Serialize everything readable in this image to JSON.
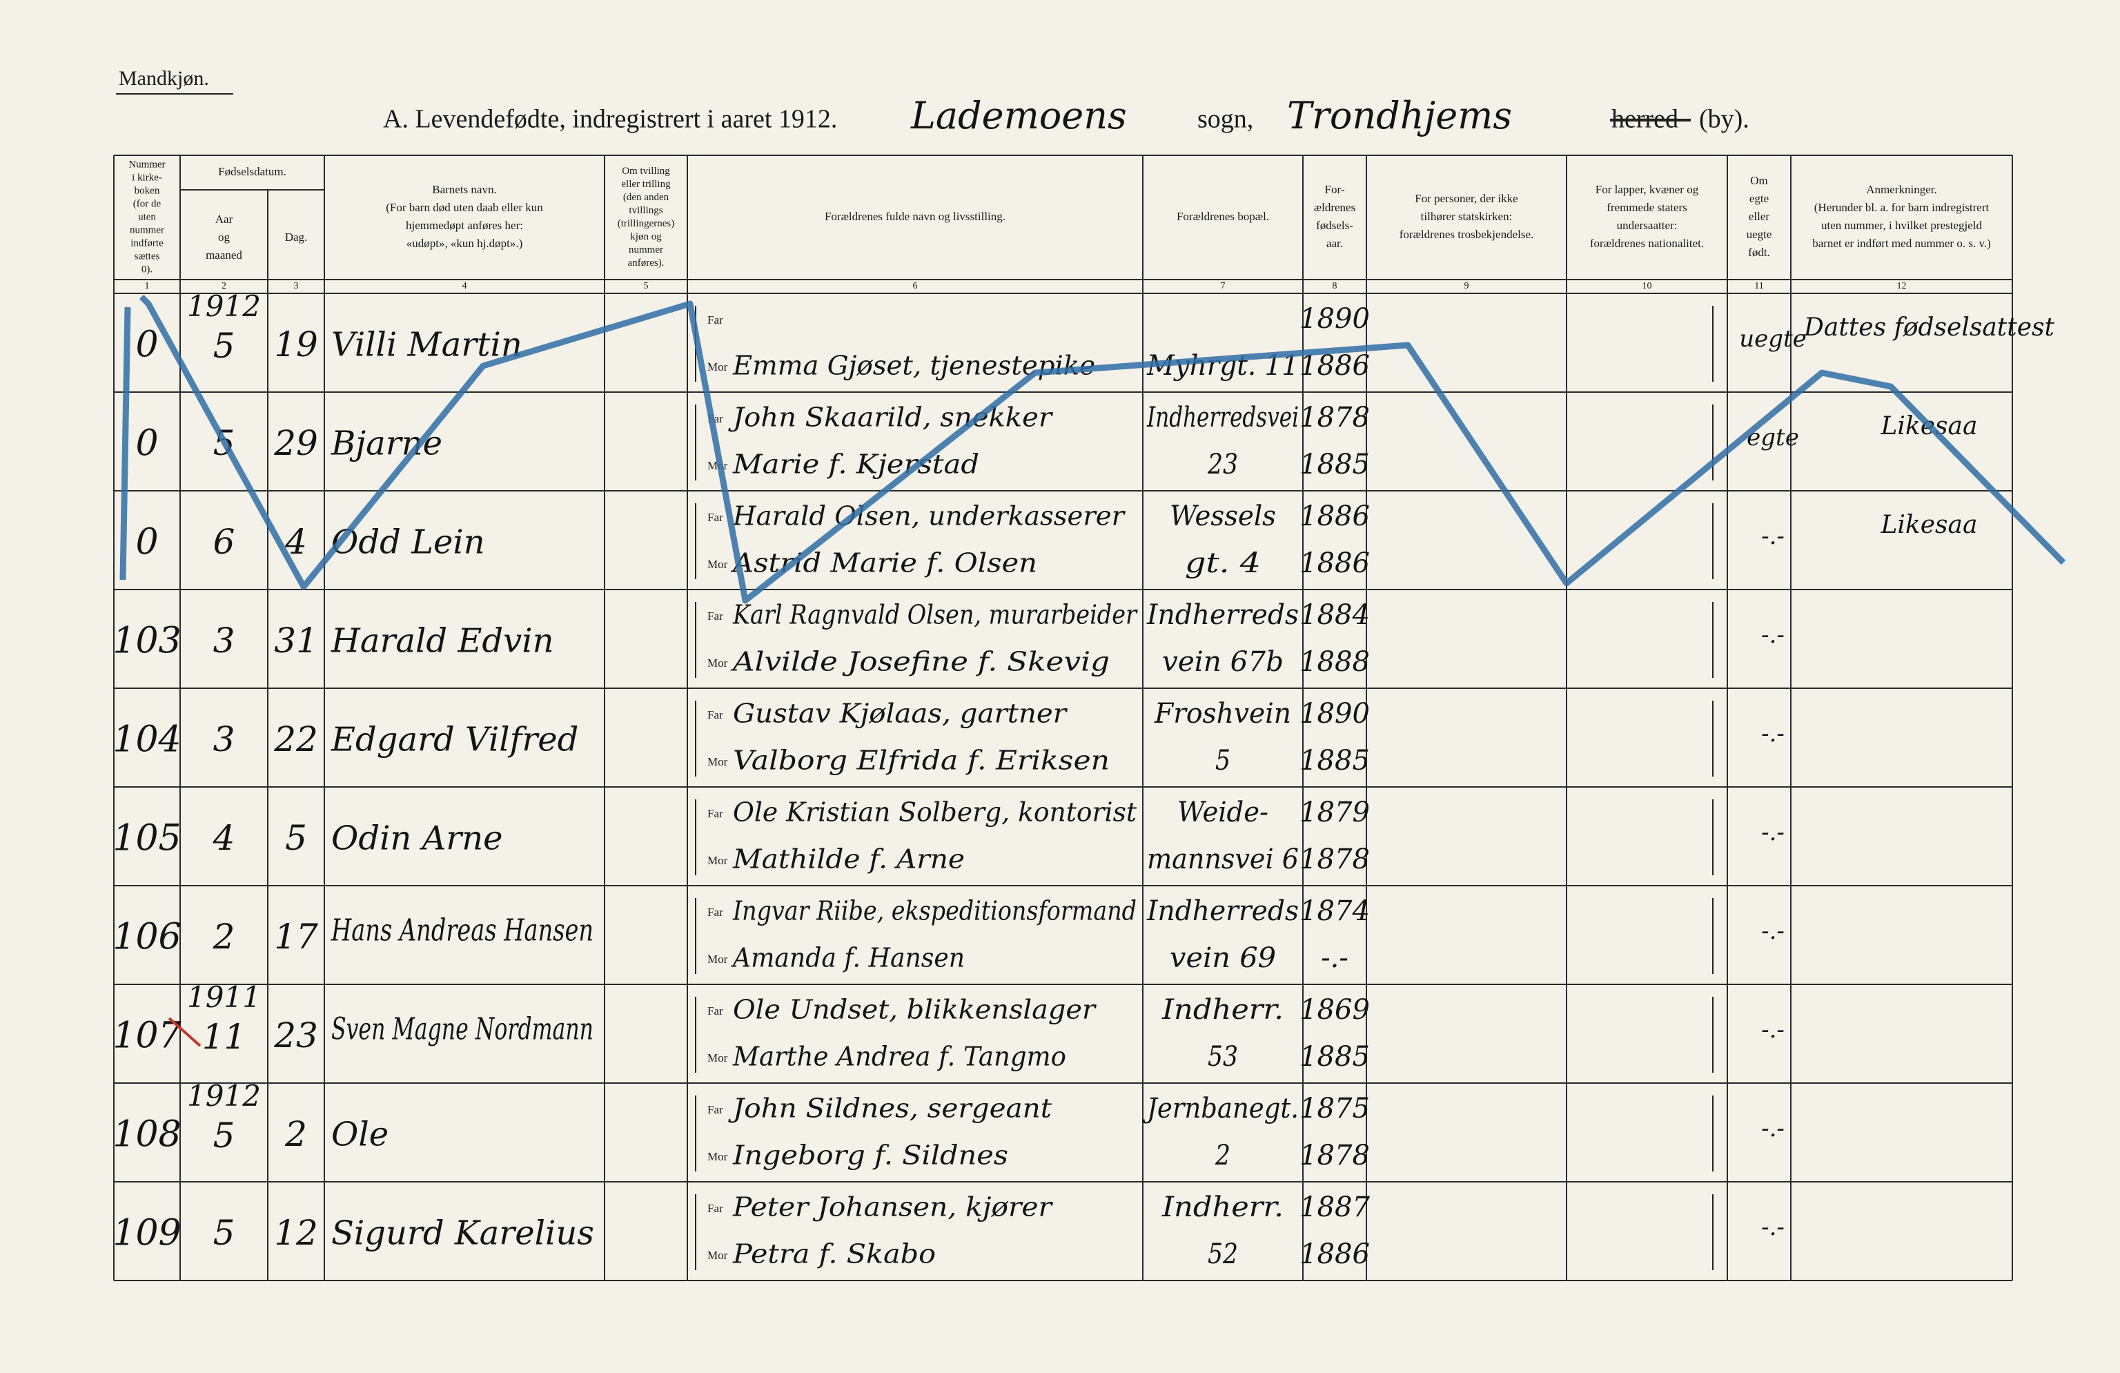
{
  "header": {
    "corner_label": "Mandkjøn.",
    "title": "A.  Levendefødte, indregistrert i aaret 1912.",
    "parish": "Lademoens",
    "sogn_label": "sogn,",
    "town": "Trondhjems",
    "herred": "herred",
    "by": "(by)."
  },
  "date_header": "Fødselsdatum.",
  "columns": [
    {
      "number": "1",
      "lines": [
        "Nummer",
        "i kirke-",
        "boken",
        "(for de",
        "uten",
        "nummer",
        "indførte",
        "sættes",
        "0)."
      ]
    },
    {
      "number": "2",
      "lines": [
        "Aar",
        "og",
        "maaned"
      ]
    },
    {
      "number": "3",
      "lines": [
        "Dag."
      ]
    },
    {
      "number": "4",
      "lines": [
        "Barnets navn.",
        "(For barn død uten daab eller kun",
        "hjemmedøpt anføres her:",
        "«udøpt», «kun hj.døpt».)"
      ]
    },
    {
      "number": "5",
      "lines": [
        "Om tvilling",
        "eller trilling",
        "(den anden",
        "tvillings",
        "(trillingernes)",
        "kjøn og",
        "nummer",
        "anføres)."
      ]
    },
    {
      "number": "6",
      "lines": [
        "Forældrenes fulde navn og livsstilling."
      ]
    },
    {
      "number": "7",
      "lines": [
        "Forældrenes bopæl."
      ]
    },
    {
      "number": "8",
      "lines": [
        "For-",
        "ældrenes",
        "fødsels-",
        "aar."
      ]
    },
    {
      "number": "9",
      "lines": [
        "For personer, der ikke",
        "tilhører statskirken:",
        "forældrenes trosbekjendelse."
      ]
    },
    {
      "number": "10",
      "lines": [
        "For lapper, kvæner og",
        "fremmede staters",
        "undersaatter:",
        "forældrenes nationalitet."
      ]
    },
    {
      "number": "11",
      "lines": [
        "Om",
        "egte",
        "eller",
        "uegte",
        "født."
      ]
    },
    {
      "number": "12",
      "lines": [
        "Anmerkninger.",
        "(Herunder bl. a. for barn indregistrert",
        "uten nummer, i hvilket prestegjeld",
        "barnet er indført med nummer o. s. v.)"
      ]
    }
  ],
  "labels": {
    "far": "Far",
    "mor": "Mor"
  },
  "rows": [
    {
      "nr": "0",
      "year": "1912",
      "month": "5",
      "day": "19",
      "name": "Villi Martin",
      "mor": "Emma Gjøset, tjenestepike",
      "bopael": [
        "Myhrgt. 11"
      ],
      "far_year": "1890",
      "mor_year": "1886",
      "legit": "uegte",
      "remark": "Dattes fødselsattest"
    },
    {
      "nr": "0",
      "month": "5",
      "day": "29",
      "name": "Bjarne",
      "far": "John Skaarild, snekker",
      "mor": "Marie f. Kjerstad",
      "bopael": [
        "Indherredsvei",
        "23"
      ],
      "far_year": "1878",
      "mor_year": "1885",
      "legit": "egte",
      "remark": "Likesaa"
    },
    {
      "nr": "0",
      "month": "6",
      "day": "4",
      "name": "Odd Lein",
      "far": "Harald Olsen, underkasserer",
      "mor": "Astrid Marie f. Olsen",
      "bopael": [
        "Wessels",
        "gt. 4"
      ],
      "far_year": "1886",
      "mor_year": "1886",
      "legit": "-.-",
      "remark": "Likesaa"
    },
    {
      "nr": "103",
      "month": "3",
      "day": "31",
      "name": "Harald Edvin",
      "far": "Karl Ragnvald Olsen, murarbeider",
      "mor": "Alvilde Josefine f. Skevig",
      "bopael": [
        "Indherreds",
        "vein 67b"
      ],
      "far_year": "1884",
      "mor_year": "1888",
      "legit": "-.-"
    },
    {
      "nr": "104",
      "month": "3",
      "day": "22",
      "name": "Edgard Vilfred",
      "far": "Gustav Kjølaas, gartner",
      "mor": "Valborg Elfrida f. Eriksen",
      "bopael": [
        "Froshvein",
        "5"
      ],
      "far_year": "1890",
      "mor_year": "1885",
      "legit": "-.-"
    },
    {
      "nr": "105",
      "month": "4",
      "day": "5",
      "name": "Odin Arne",
      "far": "Ole Kristian Solberg, kontorist",
      "mor": "Mathilde f. Arne",
      "bopael": [
        "Weide-",
        "mannsvei 6"
      ],
      "far_year": "1879",
      "mor_year": "1878",
      "legit": "-.-"
    },
    {
      "nr": "106",
      "month": "2",
      "day": "17",
      "name": "Hans Andreas Hansen",
      "far": "Ingvar Riibe, ekspeditionsformand",
      "mor": "Amanda f. Hansen",
      "bopael": [
        "Indherreds",
        "vein 69"
      ],
      "far_year": "1874",
      "mor_year": "-.-",
      "legit": "-.-"
    },
    {
      "nr": "107",
      "year": "1911",
      "month": "11",
      "day": "23",
      "name": "Sven Magne Nordmann",
      "far": "Ole Undset, blikkenslager",
      "mor": "Marthe Andrea f. Tangmo",
      "bopael": [
        "Indherr.",
        "53"
      ],
      "far_year": "1869",
      "mor_year": "1885",
      "legit": "-.-"
    },
    {
      "nr": "108",
      "year": "1912",
      "month": "5",
      "day": "2",
      "name": "Ole",
      "far": "John Sildnes, sergeant",
      "mor": "Ingeborg f. Sildnes",
      "bopael": [
        "Jernbanegt.",
        "2"
      ],
      "far_year": "1875",
      "mor_year": "1878",
      "legit": "-.-"
    },
    {
      "nr": "109",
      "month": "5",
      "day": "12",
      "name": "Sigurd Karelius",
      "far": "Peter Johansen, kjører",
      "mor": "Petra f. Skabo",
      "bopael": [
        "Indherr.",
        "52"
      ],
      "far_year": "1887",
      "mor_year": "1886",
      "legit": "-.-"
    }
  ]
}
